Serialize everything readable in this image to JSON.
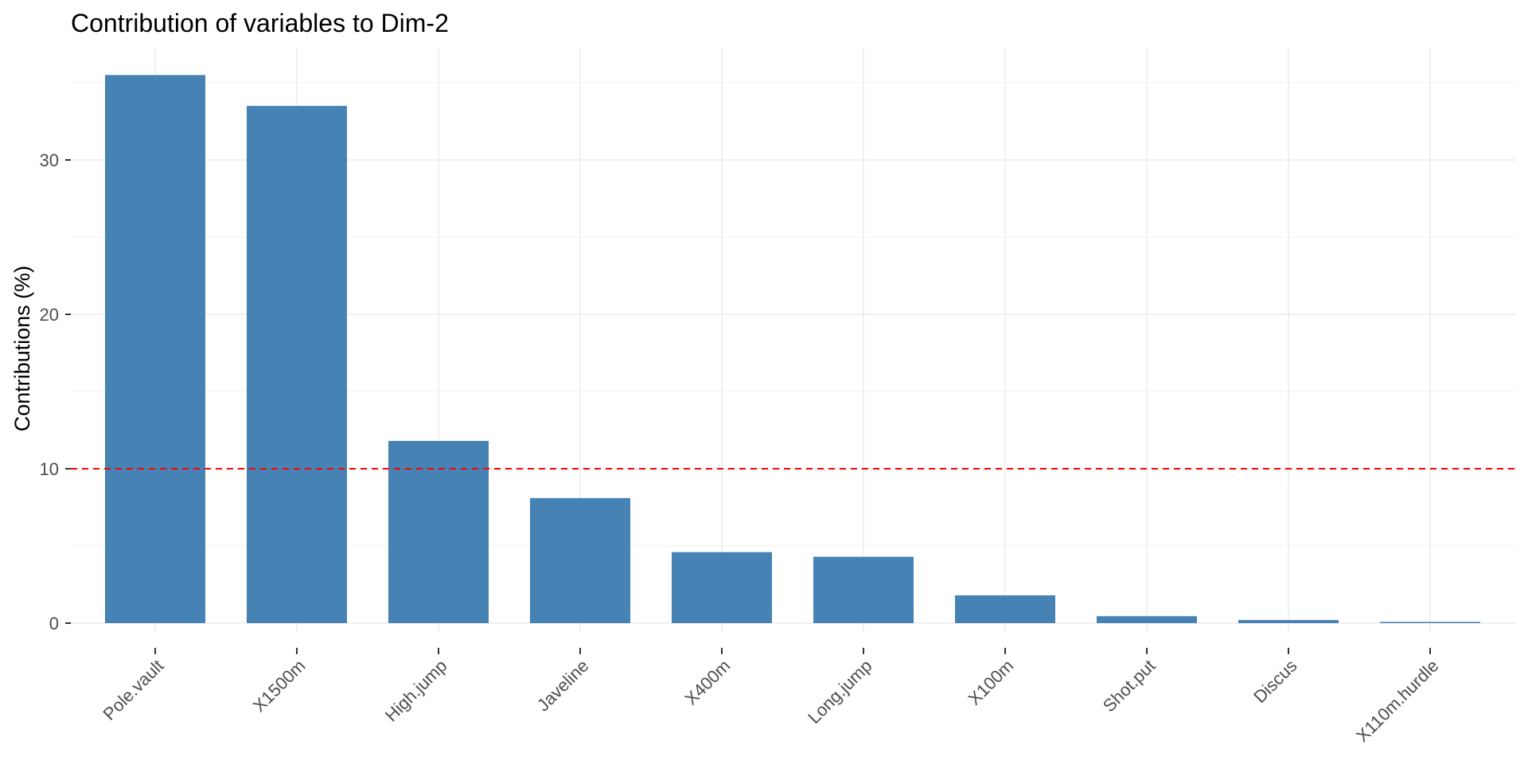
{
  "chart_data": {
    "type": "bar",
    "title": "Contribution of variables to Dim-2",
    "xlabel": "",
    "ylabel": "Contributions (%)",
    "categories": [
      "Pole.vault",
      "X1500m",
      "High.jump",
      "Javeline",
      "X400m",
      "Long.jump",
      "X100m",
      "Shot.put",
      "Discus",
      "X110m.hurdle"
    ],
    "values": [
      35.5,
      33.5,
      11.8,
      8.1,
      4.6,
      4.3,
      1.8,
      0.45,
      0.2,
      0.08
    ],
    "yticks": [
      0,
      10,
      20,
      30
    ],
    "ylim": [
      -0.5,
      37.5
    ],
    "reference_line": {
      "value": 10,
      "color": "#ff0000",
      "style": "dashed"
    },
    "bar_color": "#4682b4",
    "grid": true,
    "legend": "none"
  }
}
